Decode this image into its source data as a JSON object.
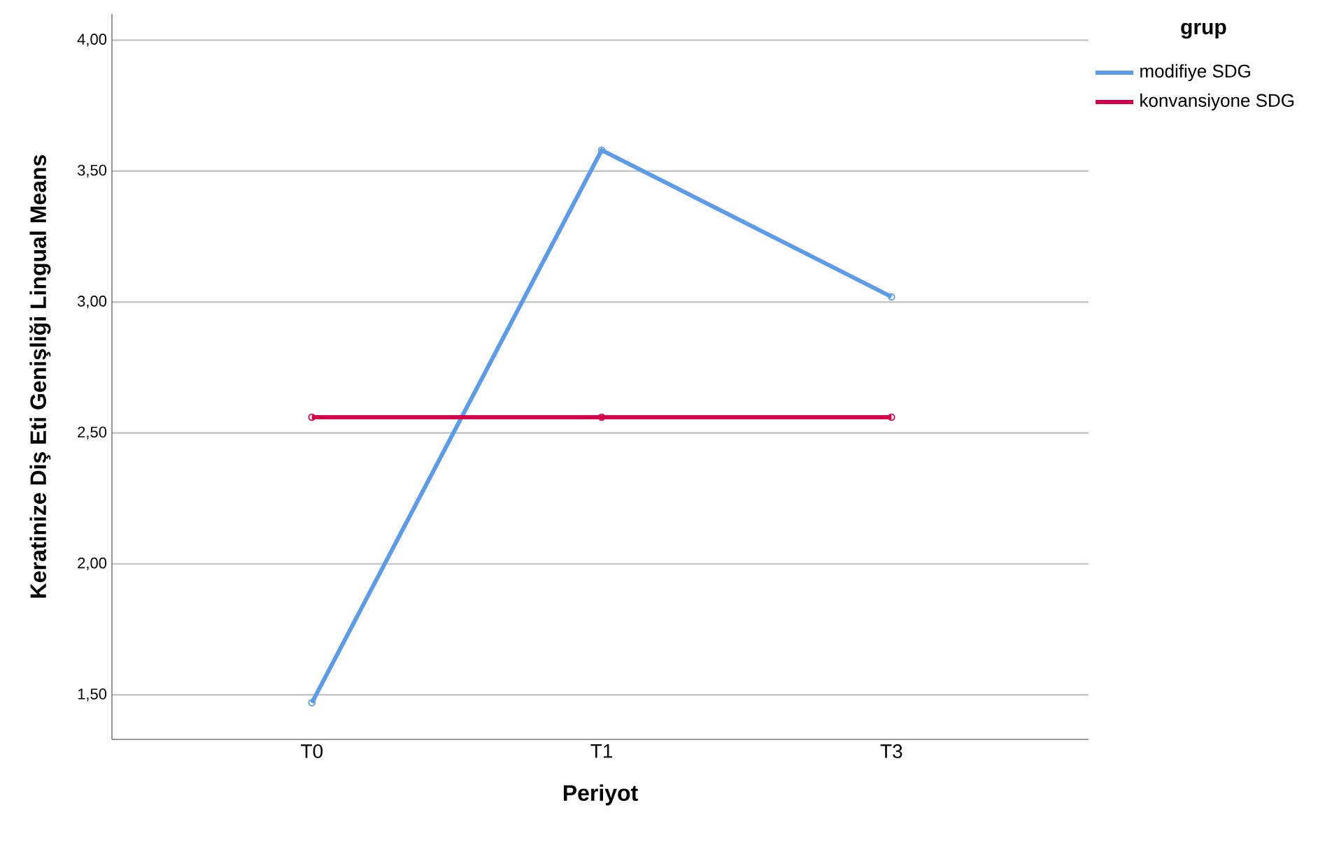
{
  "chart_data": {
    "type": "line",
    "xlabel": "Periyot",
    "ylabel": "Keratinize Diş Eti Genişliği Lingual Means",
    "legend_title": "grup",
    "legend": "right",
    "grid": "y",
    "marker": "circle",
    "line_style": "solid",
    "categories": [
      "T0",
      "T1",
      "T3"
    ],
    "ylim": [
      1.33,
      4.1
    ],
    "yticks": [
      {
        "value": 1.5,
        "label": "1,50"
      },
      {
        "value": 2.0,
        "label": "2,00"
      },
      {
        "value": 2.5,
        "label": "2,50"
      },
      {
        "value": 3.0,
        "label": "3,00"
      },
      {
        "value": 3.5,
        "label": "3,50"
      },
      {
        "value": 4.0,
        "label": "4,00"
      }
    ],
    "series": [
      {
        "name": "modifiye SDG",
        "color": "#5b9be8",
        "values": [
          1.47,
          3.58,
          3.02
        ]
      },
      {
        "name": "konvansiyone SDG",
        "color": "#d5004c",
        "values": [
          2.56,
          2.56,
          2.56
        ]
      }
    ]
  }
}
